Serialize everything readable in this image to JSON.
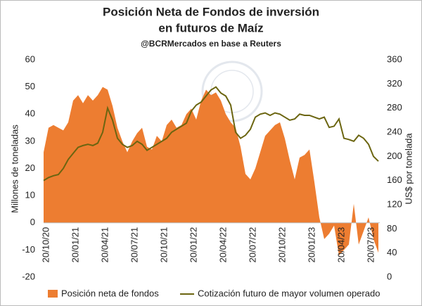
{
  "chart_data": {
    "type": "area-line",
    "title": "Posición Neta de Fondos de inversión",
    "title_line2": "en futuros de Maíz",
    "subtitle": "@BCRMercados  en base a Reuters",
    "y_label": "Millones de toneladas",
    "y2_label": "US$ por tonelada",
    "categories": [
      "20/10/20",
      null,
      null,
      null,
      null,
      null,
      "20/01/21",
      null,
      null,
      null,
      null,
      null,
      "20/04/21",
      null,
      null,
      null,
      null,
      null,
      "20/07/21",
      null,
      null,
      null,
      null,
      null,
      "20/10/21",
      null,
      null,
      null,
      null,
      null,
      "20/01/22",
      null,
      null,
      null,
      null,
      null,
      "20/04/22",
      null,
      null,
      null,
      null,
      null,
      "20/07/22",
      null,
      null,
      null,
      null,
      null,
      "20/10/22",
      null,
      null,
      null,
      null,
      null,
      "20/01/23",
      null,
      null,
      null,
      null,
      null,
      "20/04/23",
      null,
      null,
      null,
      null,
      null,
      "20/07/23",
      null,
      null
    ],
    "series": [
      {
        "name": "Posición neta de fondos",
        "color": "#ed7d31",
        "kind": "area",
        "values": [
          26,
          35,
          36,
          35,
          34,
          37,
          45,
          47,
          44,
          47,
          45,
          47,
          50,
          49,
          43,
          35,
          30,
          26,
          30,
          33,
          35,
          28,
          27,
          32,
          30,
          36,
          38,
          35,
          36,
          40,
          42,
          38,
          45,
          49,
          47,
          48,
          45,
          40,
          37,
          35,
          28,
          18,
          16,
          20,
          26,
          32,
          34,
          36,
          37,
          31,
          23,
          16,
          24,
          25,
          27,
          15,
          2,
          -6,
          -4,
          -1,
          -12,
          -10,
          -8,
          7,
          -8,
          -3,
          2,
          -6,
          -11
        ]
      },
      {
        "name": "Cotización futuro de mayor volumen operado",
        "color": "#6b6510",
        "kind": "line",
        "axis": "y2",
        "values": [
          160,
          165,
          168,
          170,
          180,
          195,
          205,
          215,
          218,
          220,
          218,
          222,
          240,
          280,
          260,
          230,
          220,
          215,
          218,
          225,
          220,
          210,
          215,
          220,
          225,
          230,
          240,
          245,
          250,
          255,
          275,
          285,
          290,
          300,
          310,
          315,
          305,
          300,
          285,
          240,
          230,
          235,
          245,
          265,
          270,
          272,
          268,
          272,
          270,
          265,
          260,
          262,
          270,
          268,
          268,
          265,
          262,
          265,
          248,
          250,
          262,
          230,
          228,
          225,
          235,
          230,
          220,
          200,
          192
        ]
      }
    ],
    "ylim": [
      -20,
      60
    ],
    "yticks": [
      -20,
      -10,
      0,
      10,
      20,
      30,
      40,
      50,
      60
    ],
    "y2lim": [
      0,
      360
    ],
    "y2ticks": [
      0,
      40,
      80,
      120,
      160,
      200,
      240,
      280,
      320,
      360
    ]
  }
}
